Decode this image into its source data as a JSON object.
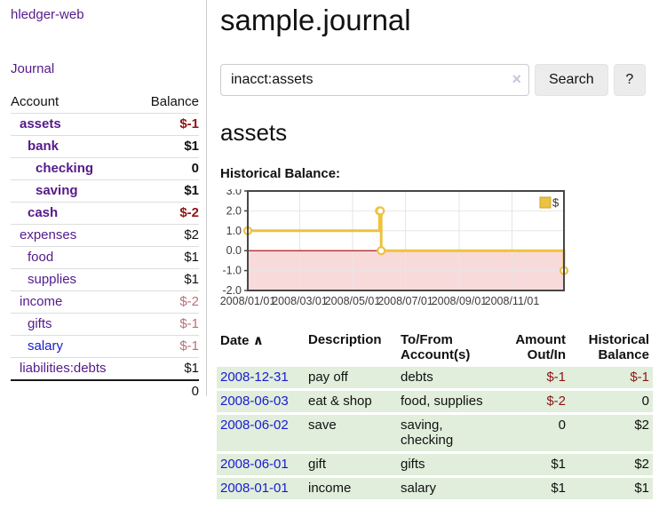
{
  "sidebar": {
    "brand": "hledger-web",
    "journal_link": "Journal",
    "accounts_table": {
      "headers": {
        "account": "Account",
        "balance": "Balance"
      },
      "rows": [
        {
          "name": "assets",
          "indent": 1,
          "bold": true,
          "balance": "$-1",
          "neg": true,
          "unvisited": false
        },
        {
          "name": "bank",
          "indent": 2,
          "bold": true,
          "balance": "$1",
          "neg": false,
          "unvisited": false
        },
        {
          "name": "checking",
          "indent": 3,
          "bold": true,
          "balance": "0",
          "neg": false,
          "unvisited": false
        },
        {
          "name": "saving",
          "indent": 3,
          "bold": true,
          "balance": "$1",
          "neg": false,
          "unvisited": false
        },
        {
          "name": "cash",
          "indent": 2,
          "bold": true,
          "balance": "$-2",
          "neg": true,
          "unvisited": false
        },
        {
          "name": "expenses",
          "indent": 1,
          "bold": false,
          "balance": "$2",
          "neg": false,
          "unvisited": false
        },
        {
          "name": "food",
          "indent": 2,
          "bold": false,
          "balance": "$1",
          "neg": false,
          "unvisited": false
        },
        {
          "name": "supplies",
          "indent": 2,
          "bold": false,
          "balance": "$1",
          "neg": false,
          "unvisited": false
        },
        {
          "name": "income",
          "indent": 1,
          "bold": false,
          "balance": "$-2",
          "neg": true,
          "unvisited": false
        },
        {
          "name": "gifts",
          "indent": 2,
          "bold": false,
          "balance": "$-1",
          "neg": true,
          "unvisited": false
        },
        {
          "name": "salary",
          "indent": 2,
          "bold": false,
          "balance": "$-1",
          "neg": true,
          "unvisited": true
        },
        {
          "name": "liabilities:debts",
          "indent": 1,
          "bold": false,
          "balance": "$1",
          "neg": false,
          "unvisited": false
        }
      ],
      "total": "0"
    }
  },
  "main": {
    "title": "sample.journal",
    "search": {
      "value": "inacct:assets",
      "clear_icon": "×",
      "button_label": "Search",
      "help_label": "?"
    },
    "account_heading": "assets",
    "chart_label": "Historical Balance:"
  },
  "chart_data": {
    "type": "line",
    "step": true,
    "title": "Historical Balance:",
    "series": [
      {
        "name": "$",
        "x": [
          "2008-01-01",
          "2008-06-01",
          "2008-06-02",
          "2008-06-03",
          "2008-12-31"
        ],
        "y": [
          1,
          2,
          2,
          0,
          -1
        ]
      }
    ],
    "xlim": [
      "2008-01-01",
      "2008-12-31"
    ],
    "ylim": [
      -2,
      3
    ],
    "x_ticks": [
      "2008/01/01",
      "2008/03/01",
      "2008/05/01",
      "2008/07/01",
      "2008/09/01",
      "2008/11/01"
    ],
    "y_ticks": [
      "3.0",
      "2.0",
      "1.0",
      "0.0",
      "-1.0",
      "-2.0"
    ],
    "legend": {
      "label": "$",
      "position": "top-right"
    },
    "grid": true,
    "negative_region_shaded": true
  },
  "register": {
    "headers": {
      "date": "Date",
      "sort_icon": "∧",
      "description": "Description",
      "accounts": "To/From Account(s)",
      "amount": "Amount Out/In",
      "balance": "Historical Balance"
    },
    "rows": [
      {
        "date": "2008-12-31",
        "description": "pay off",
        "accounts": "debts",
        "amount": "$-1",
        "balance": "$-1"
      },
      {
        "date": "2008-06-03",
        "description": "eat & shop",
        "accounts": "food, supplies",
        "amount": "$-2",
        "balance": "0"
      },
      {
        "date": "2008-06-02",
        "description": "save",
        "accounts": "saving, checking",
        "amount": "0",
        "balance": "$2"
      },
      {
        "date": "2008-06-01",
        "description": "gift",
        "accounts": "gifts",
        "amount": "$1",
        "balance": "$2"
      },
      {
        "date": "2008-01-01",
        "description": "income",
        "accounts": "salary",
        "amount": "$1",
        "balance": "$1"
      }
    ]
  },
  "colors": {
    "link_purple": "#551a8b",
    "link_blue": "#1a1ad1",
    "negative_strong": "#8e1515",
    "negative_muted": "#bd6f74",
    "row_green": "#e0eedb",
    "chart_line": "#edc240",
    "chart_marker_fill": "#ffffff",
    "chart_negative_region": "#f9dada",
    "chart_zero_line": "#a40000",
    "chart_grid": "#e6e6e6",
    "chart_border": "#474747",
    "button_bg": "#ececec"
  }
}
